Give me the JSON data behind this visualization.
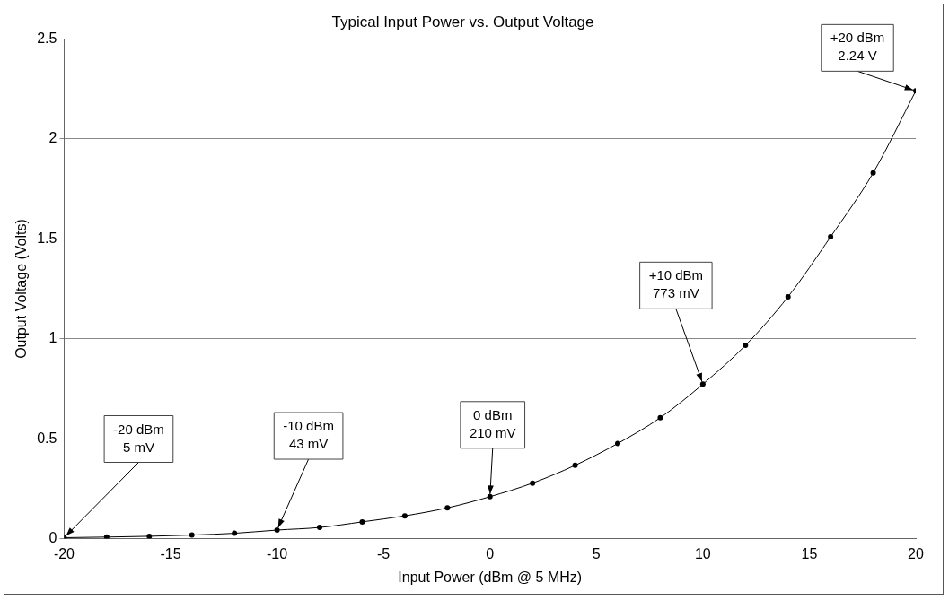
{
  "chart_data": {
    "type": "line",
    "title": "Typical Input Power vs. Output Voltage",
    "xlabel": "Input Power (dBm @ 5 MHz)",
    "ylabel": "Output Voltage (Volts)",
    "x": [
      -20,
      -18,
      -16,
      -14,
      -12,
      -10,
      -8,
      -6,
      -4,
      -2,
      0,
      2,
      4,
      6,
      8,
      10,
      12,
      14,
      16,
      18,
      20
    ],
    "series": [
      {
        "color": "#000000",
        "values": [
          0.005,
          0.008,
          0.012,
          0.018,
          0.027,
          0.043,
          0.056,
          0.084,
          0.114,
          0.154,
          0.21,
          0.278,
          0.367,
          0.476,
          0.605,
          0.773,
          0.967,
          1.21,
          1.51,
          1.83,
          2.24
        ]
      }
    ],
    "xlim": [
      -20,
      20
    ],
    "xticks": [
      -20,
      -15,
      -10,
      -5,
      0,
      5,
      10,
      15,
      20
    ],
    "ylim": [
      0,
      2.5
    ],
    "yticks": [
      0,
      0.5,
      1,
      1.5,
      2,
      2.5
    ],
    "grid": "y",
    "legend": false,
    "marker": "circle",
    "line_style": "solid",
    "annotations": [
      {
        "text": "-20 dBm\n5 mV",
        "x": -20,
        "y": 0.005
      },
      {
        "text": "-10 dBm\n43 mV",
        "x": -10,
        "y": 0.043
      },
      {
        "text": "0 dBm\n210 mV",
        "x": 0,
        "y": 0.21
      },
      {
        "text": "+10 dBm\n773 mV",
        "x": 10,
        "y": 0.773
      },
      {
        "text": "+20 dBm\n2.24 V",
        "x": 20,
        "y": 2.24
      }
    ]
  }
}
